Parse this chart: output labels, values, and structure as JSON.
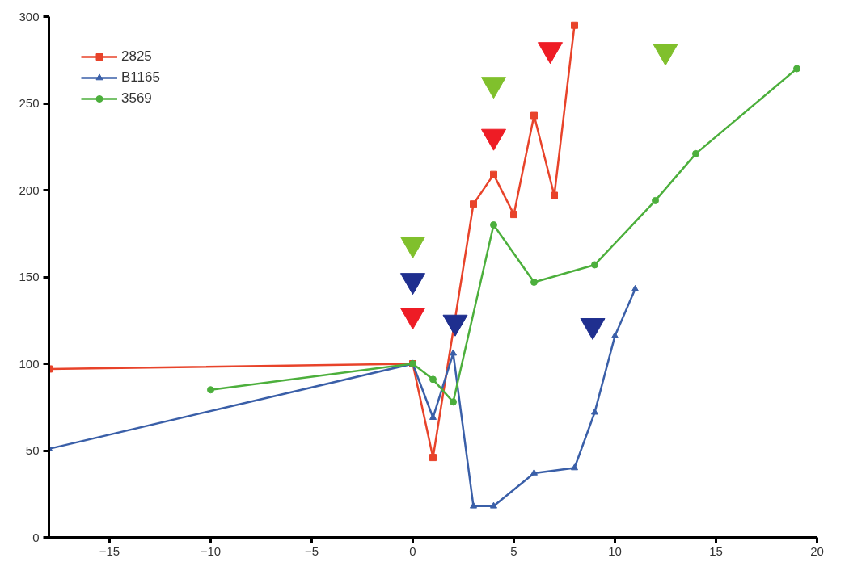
{
  "chart_data": {
    "type": "line",
    "xlim": [
      -18,
      20
    ],
    "ylim": [
      0,
      300
    ],
    "xticks": [
      -15,
      -10,
      -5,
      0,
      5,
      10,
      15,
      20
    ],
    "yticks": [
      0,
      50,
      100,
      150,
      200,
      250,
      300
    ],
    "grid": false,
    "legend": "top left",
    "series": [
      {
        "name": "2825",
        "color": "#e8432a",
        "marker": "square",
        "x": [
          -18,
          0,
          1,
          3,
          4,
          5,
          6,
          7,
          8
        ],
        "values": [
          97,
          100,
          46,
          192,
          209,
          186,
          243,
          197,
          295
        ]
      },
      {
        "name": "B1165",
        "color": "#3a5fa8",
        "marker": "triangle",
        "x": [
          -18,
          0,
          1,
          2,
          3,
          4,
          6,
          8,
          9,
          10,
          11
        ],
        "values": [
          51,
          100,
          69,
          106,
          18,
          18,
          37,
          40,
          72,
          116,
          143
        ]
      },
      {
        "name": "3569",
        "color": "#4caf3c",
        "marker": "circle",
        "x": [
          -10,
          0,
          1,
          2,
          4,
          6,
          9,
          12,
          14,
          19
        ],
        "values": [
          85,
          100,
          91,
          78,
          180,
          147,
          157,
          194,
          221,
          270
        ]
      },
      {
        "type": "scatter",
        "color": "#ee1c25",
        "marker": "triangle",
        "x": [
          0,
          4,
          6.8
        ],
        "values": [
          128,
          231,
          281
        ]
      },
      {
        "type": "scatter",
        "color": "#1f2f8f",
        "marker": "triangle",
        "x": [
          0,
          2.1,
          8.9
        ],
        "values": [
          148,
          124,
          122
        ]
      },
      {
        "type": "scatter",
        "color": "#80c02c",
        "marker": "triangle",
        "x": [
          0,
          4,
          12.5
        ],
        "values": [
          169,
          261,
          280
        ]
      }
    ]
  }
}
